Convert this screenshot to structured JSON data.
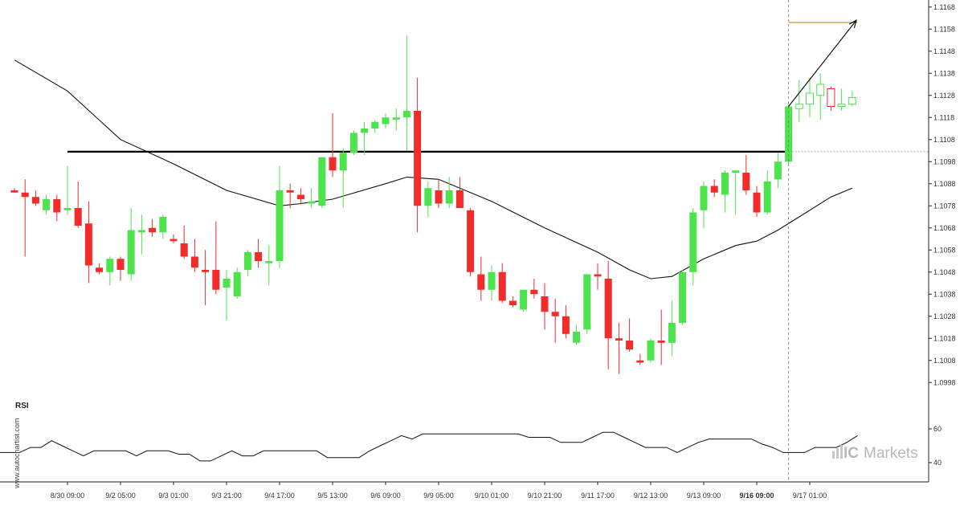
{
  "chart_data": {
    "type": "candlestick",
    "instrument": "",
    "price_axis": {
      "ylim": [
        1.0993,
        1.1169
      ],
      "ticks": [
        "1.1168",
        "1.1158",
        "1.1148",
        "1.1138",
        "1.1128",
        "1.1118",
        "1.1108",
        "1.1098",
        "1.1088",
        "1.1078",
        "1.1068",
        "1.1058",
        "1.1048",
        "1.1038",
        "1.1028",
        "1.1018",
        "1.1008",
        "1.0998"
      ]
    },
    "time_axis": {
      "labels": [
        "8/30 09:00",
        "9/2 05:00",
        "9/3 01:00",
        "9/3 21:00",
        "9/4 17:00",
        "9/5 13:00",
        "9/6 09:00",
        "9/9 05:00",
        "9/10 01:00",
        "9/10 21:00",
        "9/11 17:00",
        "9/12 13:00",
        "9/13 09:00",
        "9/16 09:00",
        "9/17 01:00"
      ],
      "label_candle_index": [
        5,
        10,
        15,
        20,
        25,
        30,
        35,
        40,
        45,
        50,
        55,
        60,
        65,
        70,
        75
      ],
      "highlighted_label": "9/16 09:00"
    },
    "candles": [
      {
        "o": 1.1085,
        "h": 1.1086,
        "l": 1.1084,
        "c": 1.1084
      },
      {
        "o": 1.1084,
        "h": 1.109,
        "l": 1.1055,
        "c": 1.1082
      },
      {
        "o": 1.1082,
        "h": 1.1085,
        "l": 1.1078,
        "c": 1.1079
      },
      {
        "o": 1.1076,
        "h": 1.1083,
        "l": 1.1074,
        "c": 1.1081
      },
      {
        "o": 1.1081,
        "h": 1.1083,
        "l": 1.1071,
        "c": 1.1075
      },
      {
        "o": 1.1076,
        "h": 1.1096,
        "l": 1.1074,
        "c": 1.1077
      },
      {
        "o": 1.1077,
        "h": 1.1089,
        "l": 1.1068,
        "c": 1.1069
      },
      {
        "o": 1.107,
        "h": 1.108,
        "l": 1.1043,
        "c": 1.1051
      },
      {
        "o": 1.105,
        "h": 1.1052,
        "l": 1.1047,
        "c": 1.1048
      },
      {
        "o": 1.1048,
        "h": 1.1055,
        "l": 1.1042,
        "c": 1.1054
      },
      {
        "o": 1.1054,
        "h": 1.1055,
        "l": 1.1044,
        "c": 1.1049
      },
      {
        "o": 1.1047,
        "h": 1.1077,
        "l": 1.1044,
        "c": 1.1067
      },
      {
        "o": 1.1066,
        "h": 1.1074,
        "l": 1.1056,
        "c": 1.1067
      },
      {
        "o": 1.1068,
        "h": 1.1072,
        "l": 1.1064,
        "c": 1.1066
      },
      {
        "o": 1.1066,
        "h": 1.1074,
        "l": 1.1063,
        "c": 1.1073
      },
      {
        "o": 1.1063,
        "h": 1.1065,
        "l": 1.1061,
        "c": 1.1062
      },
      {
        "o": 1.1061,
        "h": 1.1069,
        "l": 1.1054,
        "c": 1.1055
      },
      {
        "o": 1.1055,
        "h": 1.1063,
        "l": 1.1048,
        "c": 1.105
      },
      {
        "o": 1.1049,
        "h": 1.1058,
        "l": 1.1033,
        "c": 1.1048
      },
      {
        "o": 1.1049,
        "h": 1.1071,
        "l": 1.1038,
        "c": 1.104
      },
      {
        "o": 1.1041,
        "h": 1.1049,
        "l": 1.1026,
        "c": 1.1045
      },
      {
        "o": 1.1037,
        "h": 1.105,
        "l": 1.1036,
        "c": 1.1048
      },
      {
        "o": 1.1049,
        "h": 1.1058,
        "l": 1.1046,
        "c": 1.1057
      },
      {
        "o": 1.1057,
        "h": 1.1063,
        "l": 1.105,
        "c": 1.1053
      },
      {
        "o": 1.1052,
        "h": 1.106,
        "l": 1.1042,
        "c": 1.1053
      },
      {
        "o": 1.1053,
        "h": 1.1096,
        "l": 1.105,
        "c": 1.1085
      },
      {
        "o": 1.1085,
        "h": 1.1088,
        "l": 1.1077,
        "c": 1.1084
      },
      {
        "o": 1.1083,
        "h": 1.1086,
        "l": 1.1079,
        "c": 1.1081
      },
      {
        "o": 1.1079,
        "h": 1.1086,
        "l": 1.1077,
        "c": 1.108
      },
      {
        "o": 1.1078,
        "h": 1.11,
        "l": 1.1077,
        "c": 1.11
      },
      {
        "o": 1.11,
        "h": 1.112,
        "l": 1.1091,
        "c": 1.1094
      },
      {
        "o": 1.1094,
        "h": 1.1104,
        "l": 1.1077,
        "c": 1.1102
      },
      {
        "o": 1.1102,
        "h": 1.1112,
        "l": 1.1101,
        "c": 1.1111
      },
      {
        "o": 1.1111,
        "h": 1.1116,
        "l": 1.1101,
        "c": 1.1113
      },
      {
        "o": 1.1113,
        "h": 1.1117,
        "l": 1.1111,
        "c": 1.1116
      },
      {
        "o": 1.1115,
        "h": 1.112,
        "l": 1.1113,
        "c": 1.1118
      },
      {
        "o": 1.1117,
        "h": 1.1122,
        "l": 1.1112,
        "c": 1.1118
      },
      {
        "o": 1.1118,
        "h": 1.1155,
        "l": 1.1103,
        "c": 1.1121
      },
      {
        "o": 1.1121,
        "h": 1.1136,
        "l": 1.1066,
        "c": 1.1078
      },
      {
        "o": 1.1078,
        "h": 1.1089,
        "l": 1.1073,
        "c": 1.1086
      },
      {
        "o": 1.1085,
        "h": 1.109,
        "l": 1.1077,
        "c": 1.1079
      },
      {
        "o": 1.1079,
        "h": 1.1091,
        "l": 1.1077,
        "c": 1.1085
      },
      {
        "o": 1.1085,
        "h": 1.1091,
        "l": 1.1077,
        "c": 1.1077
      },
      {
        "o": 1.1076,
        "h": 1.1077,
        "l": 1.1046,
        "c": 1.1048
      },
      {
        "o": 1.1047,
        "h": 1.1055,
        "l": 1.1035,
        "c": 1.104
      },
      {
        "o": 1.104,
        "h": 1.1051,
        "l": 1.1035,
        "c": 1.1048
      },
      {
        "o": 1.1048,
        "h": 1.1052,
        "l": 1.1034,
        "c": 1.1035
      },
      {
        "o": 1.1035,
        "h": 1.1037,
        "l": 1.1032,
        "c": 1.1033
      },
      {
        "o": 1.1031,
        "h": 1.104,
        "l": 1.103,
        "c": 1.104
      },
      {
        "o": 1.104,
        "h": 1.1045,
        "l": 1.1036,
        "c": 1.1038
      },
      {
        "o": 1.1037,
        "h": 1.1043,
        "l": 1.1022,
        "c": 1.103
      },
      {
        "o": 1.103,
        "h": 1.1036,
        "l": 1.1016,
        "c": 1.1028
      },
      {
        "o": 1.1028,
        "h": 1.1033,
        "l": 1.1018,
        "c": 1.102
      },
      {
        "o": 1.1016,
        "h": 1.1024,
        "l": 1.1015,
        "c": 1.1021
      },
      {
        "o": 1.1022,
        "h": 1.1047,
        "l": 1.102,
        "c": 1.1047
      },
      {
        "o": 1.1047,
        "h": 1.1052,
        "l": 1.104,
        "c": 1.1046
      },
      {
        "o": 1.1045,
        "h": 1.1053,
        "l": 1.1004,
        "c": 1.1018
      },
      {
        "o": 1.1018,
        "h": 1.1025,
        "l": 1.1002,
        "c": 1.1017
      },
      {
        "o": 1.1017,
        "h": 1.1027,
        "l": 1.1012,
        "c": 1.1013
      },
      {
        "o": 1.1008,
        "h": 1.1011,
        "l": 1.1006,
        "c": 1.1007
      },
      {
        "o": 1.1008,
        "h": 1.1018,
        "l": 1.1007,
        "c": 1.1017
      },
      {
        "o": 1.1017,
        "h": 1.1031,
        "l": 1.1006,
        "c": 1.1016
      },
      {
        "o": 1.1016,
        "h": 1.1035,
        "l": 1.101,
        "c": 1.1025
      },
      {
        "o": 1.1025,
        "h": 1.1049,
        "l": 1.1024,
        "c": 1.1048
      },
      {
        "o": 1.1048,
        "h": 1.1077,
        "l": 1.1042,
        "c": 1.1075
      },
      {
        "o": 1.1076,
        "h": 1.1089,
        "l": 1.1068,
        "c": 1.1087
      },
      {
        "o": 1.1087,
        "h": 1.109,
        "l": 1.1082,
        "c": 1.1084
      },
      {
        "o": 1.1083,
        "h": 1.1094,
        "l": 1.1075,
        "c": 1.1093
      },
      {
        "o": 1.1093,
        "h": 1.1094,
        "l": 1.1074,
        "c": 1.1094
      },
      {
        "o": 1.1093,
        "h": 1.1101,
        "l": 1.1083,
        "c": 1.1085
      },
      {
        "o": 1.1084,
        "h": 1.1087,
        "l": 1.1073,
        "c": 1.1075
      },
      {
        "o": 1.1075,
        "h": 1.1094,
        "l": 1.1074,
        "c": 1.1089
      },
      {
        "o": 1.109,
        "h": 1.1102,
        "l": 1.1086,
        "c": 1.1098
      },
      {
        "o": 1.1098,
        "h": 1.1125,
        "l": 1.1097,
        "c": 1.1123
      },
      {
        "o": 1.1122,
        "h": 1.1135,
        "l": 1.1116,
        "c": 1.1124
      },
      {
        "o": 1.1124,
        "h": 1.1136,
        "l": 1.1118,
        "c": 1.1129
      },
      {
        "o": 1.1128,
        "h": 1.1138,
        "l": 1.1117,
        "c": 1.1133
      },
      {
        "o": 1.1131,
        "h": 1.1132,
        "l": 1.1121,
        "c": 1.1123
      },
      {
        "o": 1.1123,
        "h": 1.1131,
        "l": 1.1121,
        "c": 1.1124
      },
      {
        "o": 1.1124,
        "h": 1.113,
        "l": 1.1123,
        "c": 1.1127
      }
    ],
    "moving_average": [
      [
        0,
        1.1144
      ],
      [
        5,
        1.113
      ],
      [
        10,
        1.1108
      ],
      [
        15,
        1.1097
      ],
      [
        20,
        1.1085
      ],
      [
        25,
        1.1078
      ],
      [
        27,
        1.1079
      ],
      [
        30,
        1.1081
      ],
      [
        35,
        1.1088
      ],
      [
        37,
        1.1091
      ],
      [
        40,
        1.109
      ],
      [
        45,
        1.108
      ],
      [
        50,
        1.1068
      ],
      [
        55,
        1.1057
      ],
      [
        58,
        1.1049
      ],
      [
        60,
        1.1045
      ],
      [
        62,
        1.1046
      ],
      [
        65,
        1.1054
      ],
      [
        68,
        1.106
      ],
      [
        70,
        1.1062
      ],
      [
        72,
        1.1067
      ],
      [
        74,
        1.1073
      ],
      [
        77,
        1.1082
      ],
      [
        79,
        1.1086
      ]
    ],
    "resistance_level": 1.11025,
    "resistance_line_start_index": 5,
    "forecast_arrow": {
      "from": [
        73,
        1.1123
      ],
      "to": [
        80,
        1.1162
      ]
    },
    "target_level": {
      "price": 1.1161,
      "from_index": 73,
      "to_index": 79.5
    },
    "current_price_level": 1.11025,
    "current_time_index": 73,
    "rsi": {
      "label": "RSI",
      "ticks": [
        "60",
        "40"
      ],
      "ylim": [
        25,
        65
      ],
      "values": [
        46,
        46,
        49,
        49,
        53,
        50,
        47,
        44,
        47,
        47,
        47,
        47,
        44,
        47,
        47,
        47,
        45,
        45,
        41,
        41,
        44,
        47,
        44,
        44,
        47,
        47,
        47,
        47,
        47,
        47,
        43,
        43,
        43,
        43,
        47,
        50,
        53,
        56,
        54,
        57,
        57,
        57,
        57,
        57,
        57,
        57,
        57,
        57,
        57,
        55,
        55,
        55,
        52,
        52,
        52,
        55,
        58,
        58,
        55,
        52,
        49,
        49,
        49,
        46,
        49,
        52,
        54,
        54,
        54,
        54,
        54,
        51,
        49,
        46,
        46,
        46,
        49,
        49,
        49,
        52,
        56
      ]
    },
    "colors": {
      "bull": "#4ce34c",
      "bear": "#f42b2b",
      "target": "#c79a3a"
    }
  },
  "watermark": "www.autochartist.com",
  "brand": {
    "ic": "IC",
    "name": "Markets"
  }
}
